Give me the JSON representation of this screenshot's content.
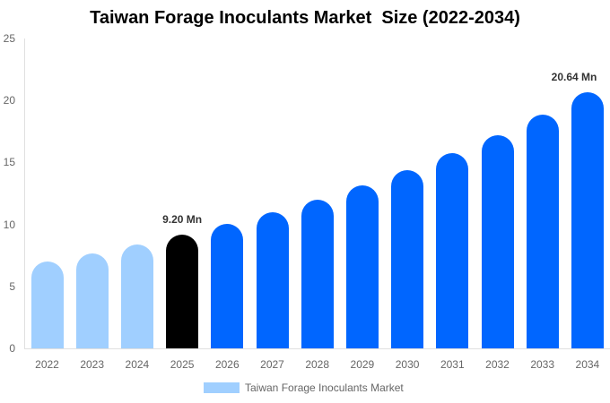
{
  "title": "Taiwan Forage Inoculants Market  Size (2022-2034)",
  "legend": {
    "label": "Taiwan Forage Inoculants Market",
    "color": "#a0cfff"
  },
  "colors": {
    "historical": "#a0cfff",
    "current": "#000000",
    "forecast": "#0066ff"
  },
  "y_ticks": [
    "0",
    "5",
    "10",
    "15",
    "20",
    "25"
  ],
  "data_labels": {
    "2025": "9.20 Mn",
    "2034": "20.64 Mn"
  },
  "chart_data": {
    "type": "bar",
    "title": "Taiwan Forage Inoculants Market  Size (2022-2034)",
    "xlabel": "",
    "ylabel": "",
    "ylim": [
      0,
      25
    ],
    "yticks": [
      0,
      5,
      10,
      15,
      20,
      25
    ],
    "grid": false,
    "legend_position": "bottom",
    "categories": [
      "2022",
      "2023",
      "2024",
      "2025",
      "2026",
      "2027",
      "2028",
      "2029",
      "2030",
      "2031",
      "2032",
      "2033",
      "2034"
    ],
    "series": [
      {
        "name": "Taiwan Forage Inoculants Market",
        "values": [
          7.0,
          7.66,
          8.38,
          9.2,
          10.04,
          10.98,
          11.99,
          13.15,
          14.38,
          15.75,
          17.2,
          18.86,
          20.64
        ]
      }
    ],
    "bar_colors": [
      "#a0cfff",
      "#a0cfff",
      "#a0cfff",
      "#000000",
      "#0066ff",
      "#0066ff",
      "#0066ff",
      "#0066ff",
      "#0066ff",
      "#0066ff",
      "#0066ff",
      "#0066ff",
      "#0066ff"
    ],
    "annotations": [
      {
        "category": "2025",
        "text": "9.20 Mn"
      },
      {
        "category": "2034",
        "text": "20.64 Mn"
      }
    ],
    "unit": "Mn"
  }
}
